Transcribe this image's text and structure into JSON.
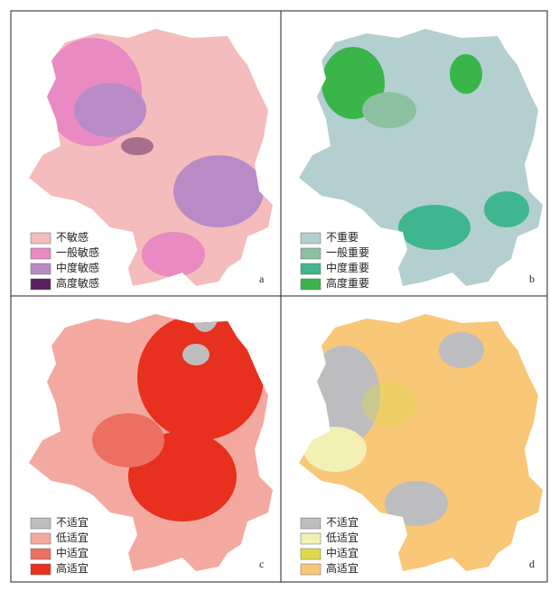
{
  "panels": [
    {
      "label": "a",
      "legend": [
        {
          "text": "不敏感",
          "color": "#f4bcbc"
        },
        {
          "text": "一般敏感",
          "color": "#e98ac2"
        },
        {
          "text": "中度敏感",
          "color": "#b98bc6"
        },
        {
          "text": "高度敏感",
          "color": "#5c1f5e"
        }
      ]
    },
    {
      "label": "b",
      "legend": [
        {
          "text": "不重要",
          "color": "#b3cfd0"
        },
        {
          "text": "一般重要",
          "color": "#8cc0a0"
        },
        {
          "text": "中度重要",
          "color": "#3fb68f"
        },
        {
          "text": "高度重要",
          "color": "#3ab54a"
        }
      ]
    },
    {
      "label": "c",
      "legend": [
        {
          "text": "不适宜",
          "color": "#bdbdbd"
        },
        {
          "text": "低适宜",
          "color": "#f4a9a0"
        },
        {
          "text": "中适宜",
          "color": "#ec7062"
        },
        {
          "text": "高适宜",
          "color": "#e8301e"
        }
      ]
    },
    {
      "label": "d",
      "legend": [
        {
          "text": "不适宜",
          "color": "#bdbdc0"
        },
        {
          "text": "低适宜",
          "color": "#f2f0b3"
        },
        {
          "text": "中适宜",
          "color": "#e0d84a"
        },
        {
          "text": "高适宜",
          "color": "#f8c878"
        }
      ]
    }
  ]
}
